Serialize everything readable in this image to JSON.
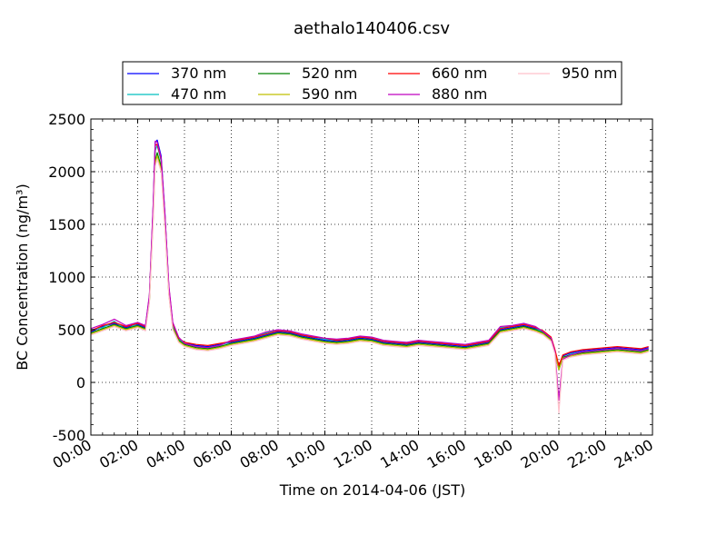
{
  "chart_data": {
    "type": "line",
    "title": "aethalo140406.csv",
    "xlabel": "Time on 2014-04-06 (JST)",
    "ylabel": "BC Concentration (ng/m³)",
    "xlim": [
      "00:00",
      "24:00"
    ],
    "ylim": [
      -500,
      2500
    ],
    "xticks": [
      "00:00",
      "02:00",
      "04:00",
      "06:00",
      "08:00",
      "10:00",
      "12:00",
      "14:00",
      "16:00",
      "18:00",
      "20:00",
      "22:00",
      "24:00"
    ],
    "yticks": [
      -500,
      0,
      500,
      1000,
      1500,
      2000,
      2500
    ],
    "grid": true,
    "legend_position": "top, above plot",
    "x": [
      "00:00",
      "00:30",
      "01:00",
      "01:30",
      "02:00",
      "02:20",
      "02:30",
      "02:40",
      "02:45",
      "02:50",
      "03:00",
      "03:10",
      "03:20",
      "03:30",
      "03:45",
      "04:00",
      "04:30",
      "05:00",
      "05:30",
      "06:00",
      "06:30",
      "07:00",
      "07:30",
      "08:00",
      "08:30",
      "09:00",
      "09:30",
      "10:00",
      "10:30",
      "11:00",
      "11:30",
      "12:00",
      "12:30",
      "13:00",
      "13:30",
      "14:00",
      "14:30",
      "15:00",
      "15:30",
      "16:00",
      "16:30",
      "17:00",
      "17:30",
      "18:00",
      "18:30",
      "19:00",
      "19:20",
      "19:40",
      "19:50",
      "20:00",
      "20:10",
      "20:30",
      "21:00",
      "21:30",
      "22:00",
      "22:30",
      "23:00",
      "23:30",
      "23:50"
    ],
    "series": [
      {
        "name": "370 nm",
        "color": "#0000ff",
        "values": [
          480,
          530,
          560,
          520,
          550,
          520,
          800,
          1700,
          2280,
          2300,
          2150,
          1600,
          900,
          550,
          420,
          380,
          350,
          340,
          360,
          380,
          400,
          420,
          450,
          480,
          470,
          440,
          420,
          400,
          390,
          400,
          420,
          410,
          380,
          370,
          360,
          380,
          370,
          360,
          350,
          340,
          360,
          380,
          500,
          520,
          540,
          510,
          480,
          420,
          300,
          150,
          250,
          280,
          300,
          310,
          320,
          330,
          320,
          310,
          330
        ]
      },
      {
        "name": "470 nm",
        "color": "#00bfbf",
        "values": [
          500,
          520,
          580,
          500,
          560,
          540,
          820,
          1650,
          2200,
          2250,
          2100,
          1550,
          880,
          540,
          410,
          370,
          340,
          330,
          350,
          390,
          410,
          430,
          470,
          490,
          480,
          450,
          430,
          410,
          400,
          410,
          430,
          420,
          390,
          380,
          370,
          390,
          380,
          370,
          360,
          350,
          370,
          390,
          520,
          530,
          550,
          520,
          470,
          410,
          280,
          120,
          230,
          270,
          290,
          300,
          310,
          320,
          310,
          300,
          320
        ]
      },
      {
        "name": "520 nm",
        "color": "#008000",
        "values": [
          470,
          510,
          550,
          510,
          540,
          510,
          780,
          1600,
          2100,
          2180,
          2050,
          1500,
          850,
          520,
          400,
          360,
          330,
          320,
          340,
          370,
          390,
          410,
          440,
          470,
          460,
          430,
          410,
          390,
          380,
          390,
          410,
          400,
          370,
          360,
          350,
          370,
          360,
          350,
          340,
          330,
          350,
          370,
          490,
          510,
          530,
          500,
          470,
          410,
          290,
          130,
          240,
          260,
          280,
          290,
          300,
          310,
          300,
          290,
          310
        ]
      },
      {
        "name": "590 nm",
        "color": "#bfbf00",
        "values": [
          460,
          500,
          540,
          500,
          530,
          500,
          770,
          1580,
          2080,
          2150,
          2020,
          1480,
          840,
          510,
          390,
          350,
          320,
          310,
          330,
          360,
          380,
          400,
          430,
          460,
          450,
          420,
          400,
          380,
          370,
          380,
          400,
          390,
          360,
          350,
          340,
          360,
          350,
          340,
          330,
          320,
          340,
          360,
          480,
          500,
          520,
          490,
          460,
          400,
          280,
          120,
          230,
          250,
          270,
          280,
          290,
          300,
          290,
          280,
          300
        ]
      },
      {
        "name": "660 nm",
        "color": "#ff0000",
        "values": [
          490,
          540,
          570,
          530,
          560,
          530,
          810,
          1680,
          2250,
          2260,
          2120,
          1580,
          900,
          560,
          420,
          380,
          360,
          350,
          370,
          390,
          410,
          430,
          460,
          490,
          480,
          450,
          430,
          420,
          400,
          410,
          430,
          420,
          390,
          380,
          370,
          390,
          380,
          370,
          360,
          350,
          370,
          390,
          510,
          530,
          550,
          520,
          490,
          430,
          310,
          160,
          260,
          290,
          310,
          320,
          330,
          340,
          330,
          320,
          340
        ]
      },
      {
        "name": "880 nm",
        "color": "#bf00bf",
        "values": [
          510,
          550,
          600,
          540,
          570,
          540,
          830,
          1720,
          2290,
          2280,
          2130,
          1590,
          920,
          570,
          430,
          370,
          340,
          330,
          350,
          400,
          420,
          440,
          480,
          500,
          490,
          460,
          440,
          420,
          410,
          420,
          440,
          430,
          400,
          390,
          380,
          400,
          390,
          380,
          370,
          360,
          380,
          400,
          530,
          540,
          560,
          530,
          480,
          420,
          290,
          -170,
          220,
          260,
          290,
          300,
          310,
          320,
          310,
          300,
          320
        ]
      },
      {
        "name": "950 nm",
        "color": "#ffc0cb",
        "values": [
          450,
          490,
          530,
          490,
          520,
          490,
          760,
          1550,
          2050,
          2120,
          2000,
          1460,
          830,
          500,
          380,
          340,
          310,
          300,
          320,
          350,
          370,
          390,
          420,
          450,
          440,
          410,
          390,
          370,
          360,
          370,
          390,
          380,
          350,
          340,
          330,
          350,
          340,
          330,
          320,
          310,
          330,
          350,
          470,
          490,
          510,
          480,
          450,
          390,
          270,
          -290,
          210,
          240,
          260,
          270,
          280,
          290,
          280,
          270,
          290
        ]
      }
    ]
  }
}
